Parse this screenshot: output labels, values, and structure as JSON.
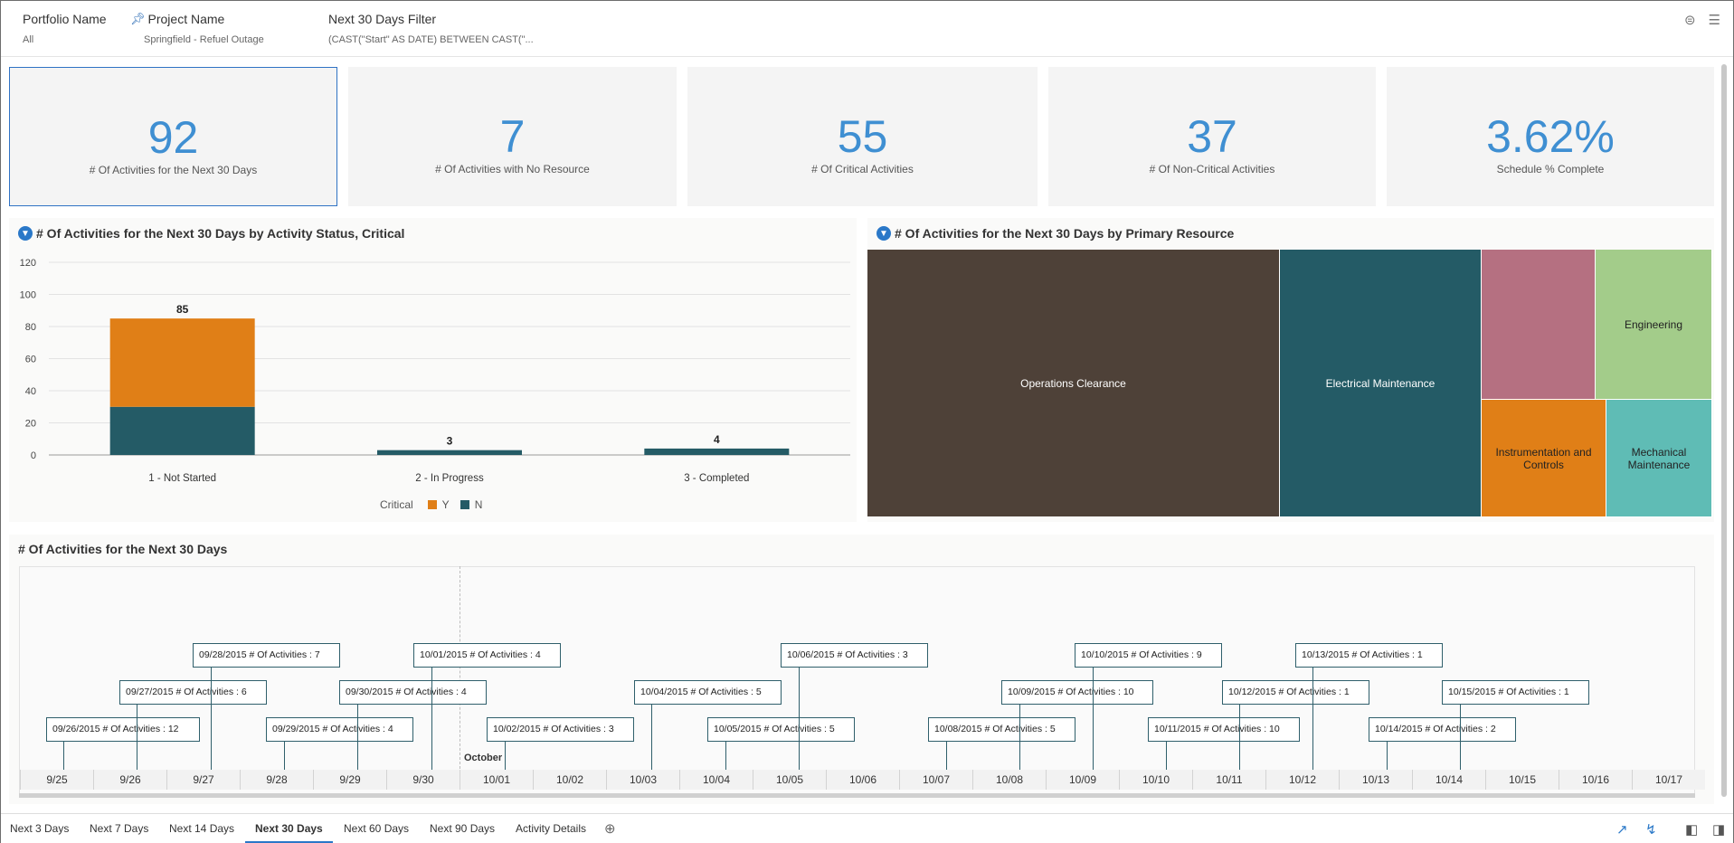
{
  "filters": [
    {
      "name": "Portfolio Name",
      "value": "All"
    },
    {
      "name": "Project Name",
      "value": "Springfield - Refuel Outage"
    },
    {
      "name": "Next 30 Days Filter",
      "value": "(CAST(\"Start\" AS DATE) BETWEEN CAST(\"..."
    }
  ],
  "kpis": [
    {
      "value": "92",
      "label": "# Of Activities for the Next 30 Days"
    },
    {
      "value": "7",
      "label": "# Of Activities with No Resource"
    },
    {
      "value": "55",
      "label": "# Of Critical Activities"
    },
    {
      "value": "37",
      "label": "# Of Non-Critical Activities"
    },
    {
      "value": "3.62%",
      "label": "Schedule % Complete"
    }
  ],
  "bar_panel": {
    "title": "# Of Activities for the Next 30 Days by Activity Status, Critical",
    "legend_title": "Critical",
    "legend_y": "Y",
    "legend_n": "N"
  },
  "treemap_panel": {
    "title": "# Of Activities for the Next 30 Days by Primary Resource",
    "cells": [
      {
        "label": "Operations Clearance",
        "color": "#4e4138"
      },
      {
        "label": "Electrical Maintenance",
        "color": "#245b66"
      },
      {
        "label": "",
        "color": "#b57081"
      },
      {
        "label": "Engineering",
        "color": "#a3cc8a"
      },
      {
        "label": "Instrumentation and Controls",
        "color": "#e07f17"
      },
      {
        "label": "Mechanical Maintenance",
        "color": "#5fbcb5"
      }
    ]
  },
  "timeline_panel": {
    "title": "# Of Activities for the Next 30 Days",
    "month_label": "October",
    "events": [
      {
        "text": "09/26/2015 # Of Activities : 12"
      },
      {
        "text": "09/27/2015 # Of Activities : 6"
      },
      {
        "text": "09/28/2015 # Of Activities : 7"
      },
      {
        "text": "09/29/2015 # Of Activities : 4"
      },
      {
        "text": "09/30/2015 # Of Activities : 4"
      },
      {
        "text": "10/01/2015 # Of Activities : 4"
      },
      {
        "text": "10/02/2015 # Of Activities : 3"
      },
      {
        "text": "10/04/2015 # Of Activities : 5"
      },
      {
        "text": "10/05/2015 # Of Activities : 5"
      },
      {
        "text": "10/06/2015 # Of Activities : 3"
      },
      {
        "text": "10/08/2015 # Of Activities : 5"
      },
      {
        "text": "10/09/2015 # Of Activities : 10"
      },
      {
        "text": "10/10/2015 # Of Activities : 9"
      },
      {
        "text": "10/11/2015 # Of Activities : 10"
      },
      {
        "text": "10/12/2015 # Of Activities : 1"
      },
      {
        "text": "10/13/2015 # Of Activities : 1"
      },
      {
        "text": "10/14/2015 # Of Activities : 2"
      },
      {
        "text": "10/15/2015 # Of Activities : 1"
      }
    ],
    "ticks": [
      "9/25",
      "9/26",
      "9/27",
      "9/28",
      "9/29",
      "9/30",
      "10/01",
      "10/02",
      "10/03",
      "10/04",
      "10/05",
      "10/06",
      "10/07",
      "10/08",
      "10/09",
      "10/10",
      "10/11",
      "10/12",
      "10/13",
      "10/14",
      "10/15",
      "10/16",
      "10/17"
    ]
  },
  "tabs": [
    "Next 3 Days",
    "Next 7 Days",
    "Next 14 Days",
    "Next 30 Days",
    "Next 60 Days",
    "Next 90 Days",
    "Activity Details"
  ],
  "active_tab": "Next 30 Days",
  "chart_data": {
    "type": "bar",
    "stacked": true,
    "title": "# Of Activities for the Next 30 Days by Activity Status, Critical",
    "categories": [
      "1 - Not Started",
      "2 - In Progress",
      "3 - Completed"
    ],
    "series": [
      {
        "name": "N",
        "color": "#245b66",
        "values": [
          30,
          3,
          4
        ]
      },
      {
        "name": "Y",
        "color": "#e07f17",
        "values": [
          55,
          0,
          0
        ]
      }
    ],
    "totals": [
      85,
      3,
      4
    ],
    "ylim": [
      0,
      120
    ],
    "yticks": [
      0,
      20,
      40,
      60,
      80,
      100,
      120
    ],
    "legend": "bottom",
    "grid": true
  }
}
